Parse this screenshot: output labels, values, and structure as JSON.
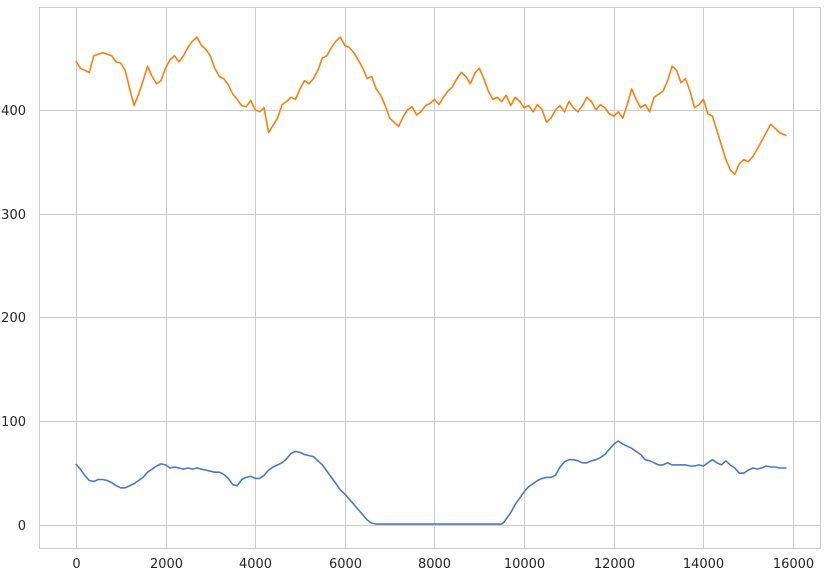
{
  "chart_data": {
    "type": "line",
    "xlim": [
      -800,
      16600
    ],
    "ylim": [
      -22,
      498
    ],
    "grid": true,
    "xticks": [
      0,
      2000,
      4000,
      6000,
      8000,
      10000,
      12000,
      14000,
      16000
    ],
    "yticks": [
      0,
      100,
      200,
      300,
      400
    ],
    "series": [
      {
        "color": "#ff7f0e",
        "x": [
          0,
          100,
          200,
          300,
          400,
          600,
          800,
          900,
          1000,
          1100,
          1200,
          1300,
          1400,
          1500,
          1600,
          1700,
          1800,
          1900,
          2000,
          2100,
          2200,
          2300,
          2400,
          2500,
          2600,
          2700,
          2800,
          2900,
          3000,
          3100,
          3200,
          3300,
          3400,
          3500,
          3600,
          3700,
          3800,
          3900,
          4000,
          4100,
          4200,
          4300,
          4400,
          4500,
          4600,
          4700,
          4800,
          4900,
          5000,
          5100,
          5200,
          5300,
          5400,
          5500,
          5600,
          5700,
          5800,
          5900,
          6000,
          6100,
          6200,
          6300,
          6400,
          6500,
          6600,
          6700,
          6800,
          6900,
          7000,
          7100,
          7200,
          7300,
          7400,
          7500,
          7600,
          7700,
          7800,
          7900,
          8000,
          8100,
          8200,
          8300,
          8400,
          8500,
          8600,
          8700,
          8800,
          8900,
          9000,
          9100,
          9200,
          9300,
          9400,
          9500,
          9600,
          9700,
          9800,
          9900,
          10000,
          10100,
          10200,
          10300,
          10400,
          10500,
          10600,
          10700,
          10800,
          10900,
          11000,
          11100,
          11200,
          11300,
          11400,
          11500,
          11600,
          11700,
          11800,
          11900,
          12000,
          12100,
          12200,
          12300,
          12400,
          12500,
          12600,
          12700,
          12800,
          12900,
          13000,
          13100,
          13200,
          13300,
          13400,
          13500,
          13600,
          13700,
          13800,
          13900,
          14000,
          14100,
          14200,
          14300,
          14400,
          14500,
          14600,
          14700,
          14800,
          14900,
          15000,
          15100,
          15200,
          15300,
          15400,
          15500,
          15600,
          15700,
          15850
        ],
        "y": [
          447,
          440,
          438,
          436,
          452,
          455,
          452,
          446,
          445,
          438,
          420,
          404,
          415,
          428,
          442,
          432,
          425,
          428,
          440,
          448,
          452,
          446,
          452,
          460,
          466,
          470,
          462,
          458,
          452,
          440,
          432,
          430,
          424,
          415,
          410,
          404,
          403,
          409,
          400,
          398,
          402,
          378,
          385,
          392,
          405,
          408,
          412,
          410,
          420,
          428,
          425,
          430,
          438,
          450,
          452,
          460,
          466,
          470,
          462,
          460,
          455,
          448,
          440,
          430,
          432,
          420,
          414,
          404,
          392,
          388,
          384,
          393,
          400,
          403,
          395,
          398,
          404,
          406,
          410,
          405,
          412,
          418,
          422,
          430,
          436,
          432,
          425,
          435,
          440,
          430,
          418,
          410,
          412,
          408,
          414,
          404,
          412,
          408,
          402,
          404,
          398,
          405,
          400,
          388,
          392,
          400,
          404,
          398,
          408,
          402,
          398,
          404,
          412,
          408,
          400,
          405,
          402,
          396,
          394,
          398,
          392,
          405,
          420,
          410,
          402,
          405,
          398,
          412,
          415,
          418,
          428,
          442,
          438,
          426,
          430,
          418,
          402,
          405,
          410,
          396,
          394,
          380,
          366,
          352,
          342,
          338,
          348,
          352,
          350,
          355,
          362,
          370,
          378,
          386,
          382,
          378,
          375
        ]
      },
      {
        "color": "#4878cf",
        "x": [
          0,
          100,
          200,
          300,
          400,
          500,
          600,
          700,
          800,
          900,
          1000,
          1100,
          1200,
          1300,
          1400,
          1500,
          1600,
          1700,
          1800,
          1900,
          2000,
          2100,
          2200,
          2300,
          2400,
          2500,
          2600,
          2700,
          2800,
          2900,
          3000,
          3100,
          3200,
          3300,
          3400,
          3500,
          3600,
          3700,
          3800,
          3900,
          4000,
          4100,
          4200,
          4300,
          4400,
          4500,
          4600,
          4700,
          4800,
          4900,
          5000,
          5100,
          5200,
          5300,
          5400,
          5500,
          5600,
          5700,
          5800,
          5900,
          6000,
          6100,
          6200,
          6300,
          6400,
          6500,
          6600,
          6700,
          6800,
          9000,
          9500,
          9550,
          9600,
          9700,
          9800,
          9900,
          10000,
          10100,
          10200,
          10300,
          10400,
          10500,
          10600,
          10700,
          10800,
          10900,
          11000,
          11100,
          11200,
          11300,
          11400,
          11500,
          11600,
          11700,
          11800,
          11900,
          12000,
          12100,
          12200,
          12300,
          12400,
          12500,
          12600,
          12700,
          12800,
          12900,
          13000,
          13100,
          13200,
          13300,
          13400,
          13500,
          13600,
          13700,
          13800,
          13900,
          14000,
          14100,
          14200,
          14300,
          14400,
          14500,
          14600,
          14700,
          14800,
          14900,
          15000,
          15100,
          15200,
          15300,
          15400,
          15500,
          15600,
          15700,
          15850
        ],
        "y": [
          59,
          54,
          48,
          43,
          42,
          44,
          44,
          43,
          41,
          38,
          36,
          36,
          38,
          40,
          43,
          46,
          51,
          54,
          57,
          59,
          58,
          55,
          56,
          55,
          54,
          55,
          54,
          55,
          54,
          53,
          52,
          51,
          51,
          49,
          45,
          39,
          38,
          44,
          46,
          47,
          45,
          45,
          48,
          53,
          56,
          58,
          60,
          64,
          69,
          71,
          70,
          68,
          67,
          66,
          62,
          58,
          52,
          46,
          40,
          34,
          30,
          25,
          20,
          15,
          10,
          5,
          2,
          1,
          1,
          1,
          1,
          3,
          6,
          12,
          20,
          26,
          32,
          37,
          40,
          43,
          45,
          46,
          46,
          48,
          56,
          61,
          63,
          63,
          62,
          60,
          60,
          62,
          63,
          65,
          68,
          73,
          78,
          81,
          78,
          76,
          74,
          71,
          68,
          63,
          62,
          60,
          58,
          58,
          60,
          58,
          58,
          58,
          58,
          57,
          57,
          58,
          57,
          60,
          63,
          60,
          58,
          62,
          58,
          55,
          50,
          50,
          53,
          55,
          54,
          55,
          57,
          56,
          56,
          55,
          55
        ]
      }
    ]
  }
}
